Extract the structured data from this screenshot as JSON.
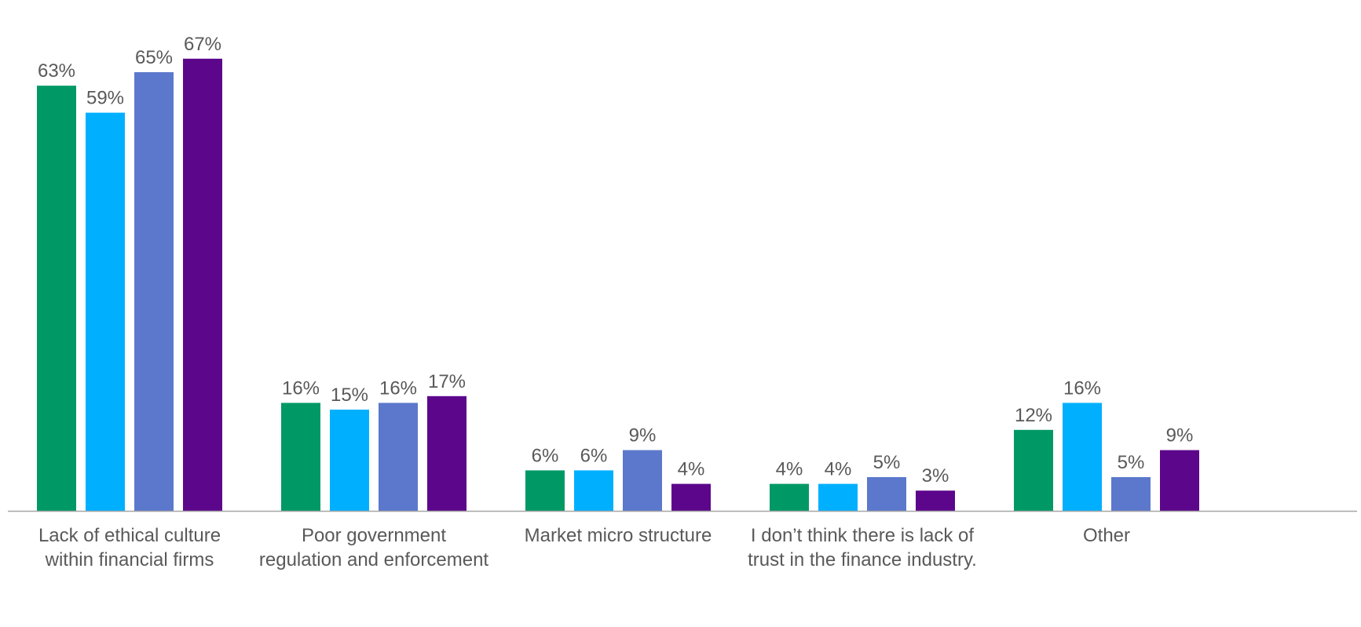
{
  "chart_data": {
    "type": "bar",
    "categories": [
      [
        "Lack of ethical culture",
        "within financial firms"
      ],
      [
        "Poor government",
        "regulation and enforcement"
      ],
      [
        "Market micro structure"
      ],
      [
        "I don’t think there is lack of",
        "trust in the finance industry."
      ],
      [
        "Other"
      ]
    ],
    "series": [
      {
        "color": "#009966",
        "values": [
          63,
          16,
          6,
          4,
          12
        ]
      },
      {
        "color": "#00B0FF",
        "values": [
          59,
          15,
          6,
          4,
          16
        ]
      },
      {
        "color": "#5B78CC",
        "values": [
          65,
          16,
          9,
          5,
          5
        ]
      },
      {
        "color": "#5C068C",
        "values": [
          67,
          17,
          4,
          3,
          9
        ]
      }
    ],
    "value_suffix": "%",
    "ylim": [
      0,
      67
    ],
    "grid": false,
    "legend": "none",
    "axis_color": "#A6A6A6",
    "label_color": "#595959"
  }
}
